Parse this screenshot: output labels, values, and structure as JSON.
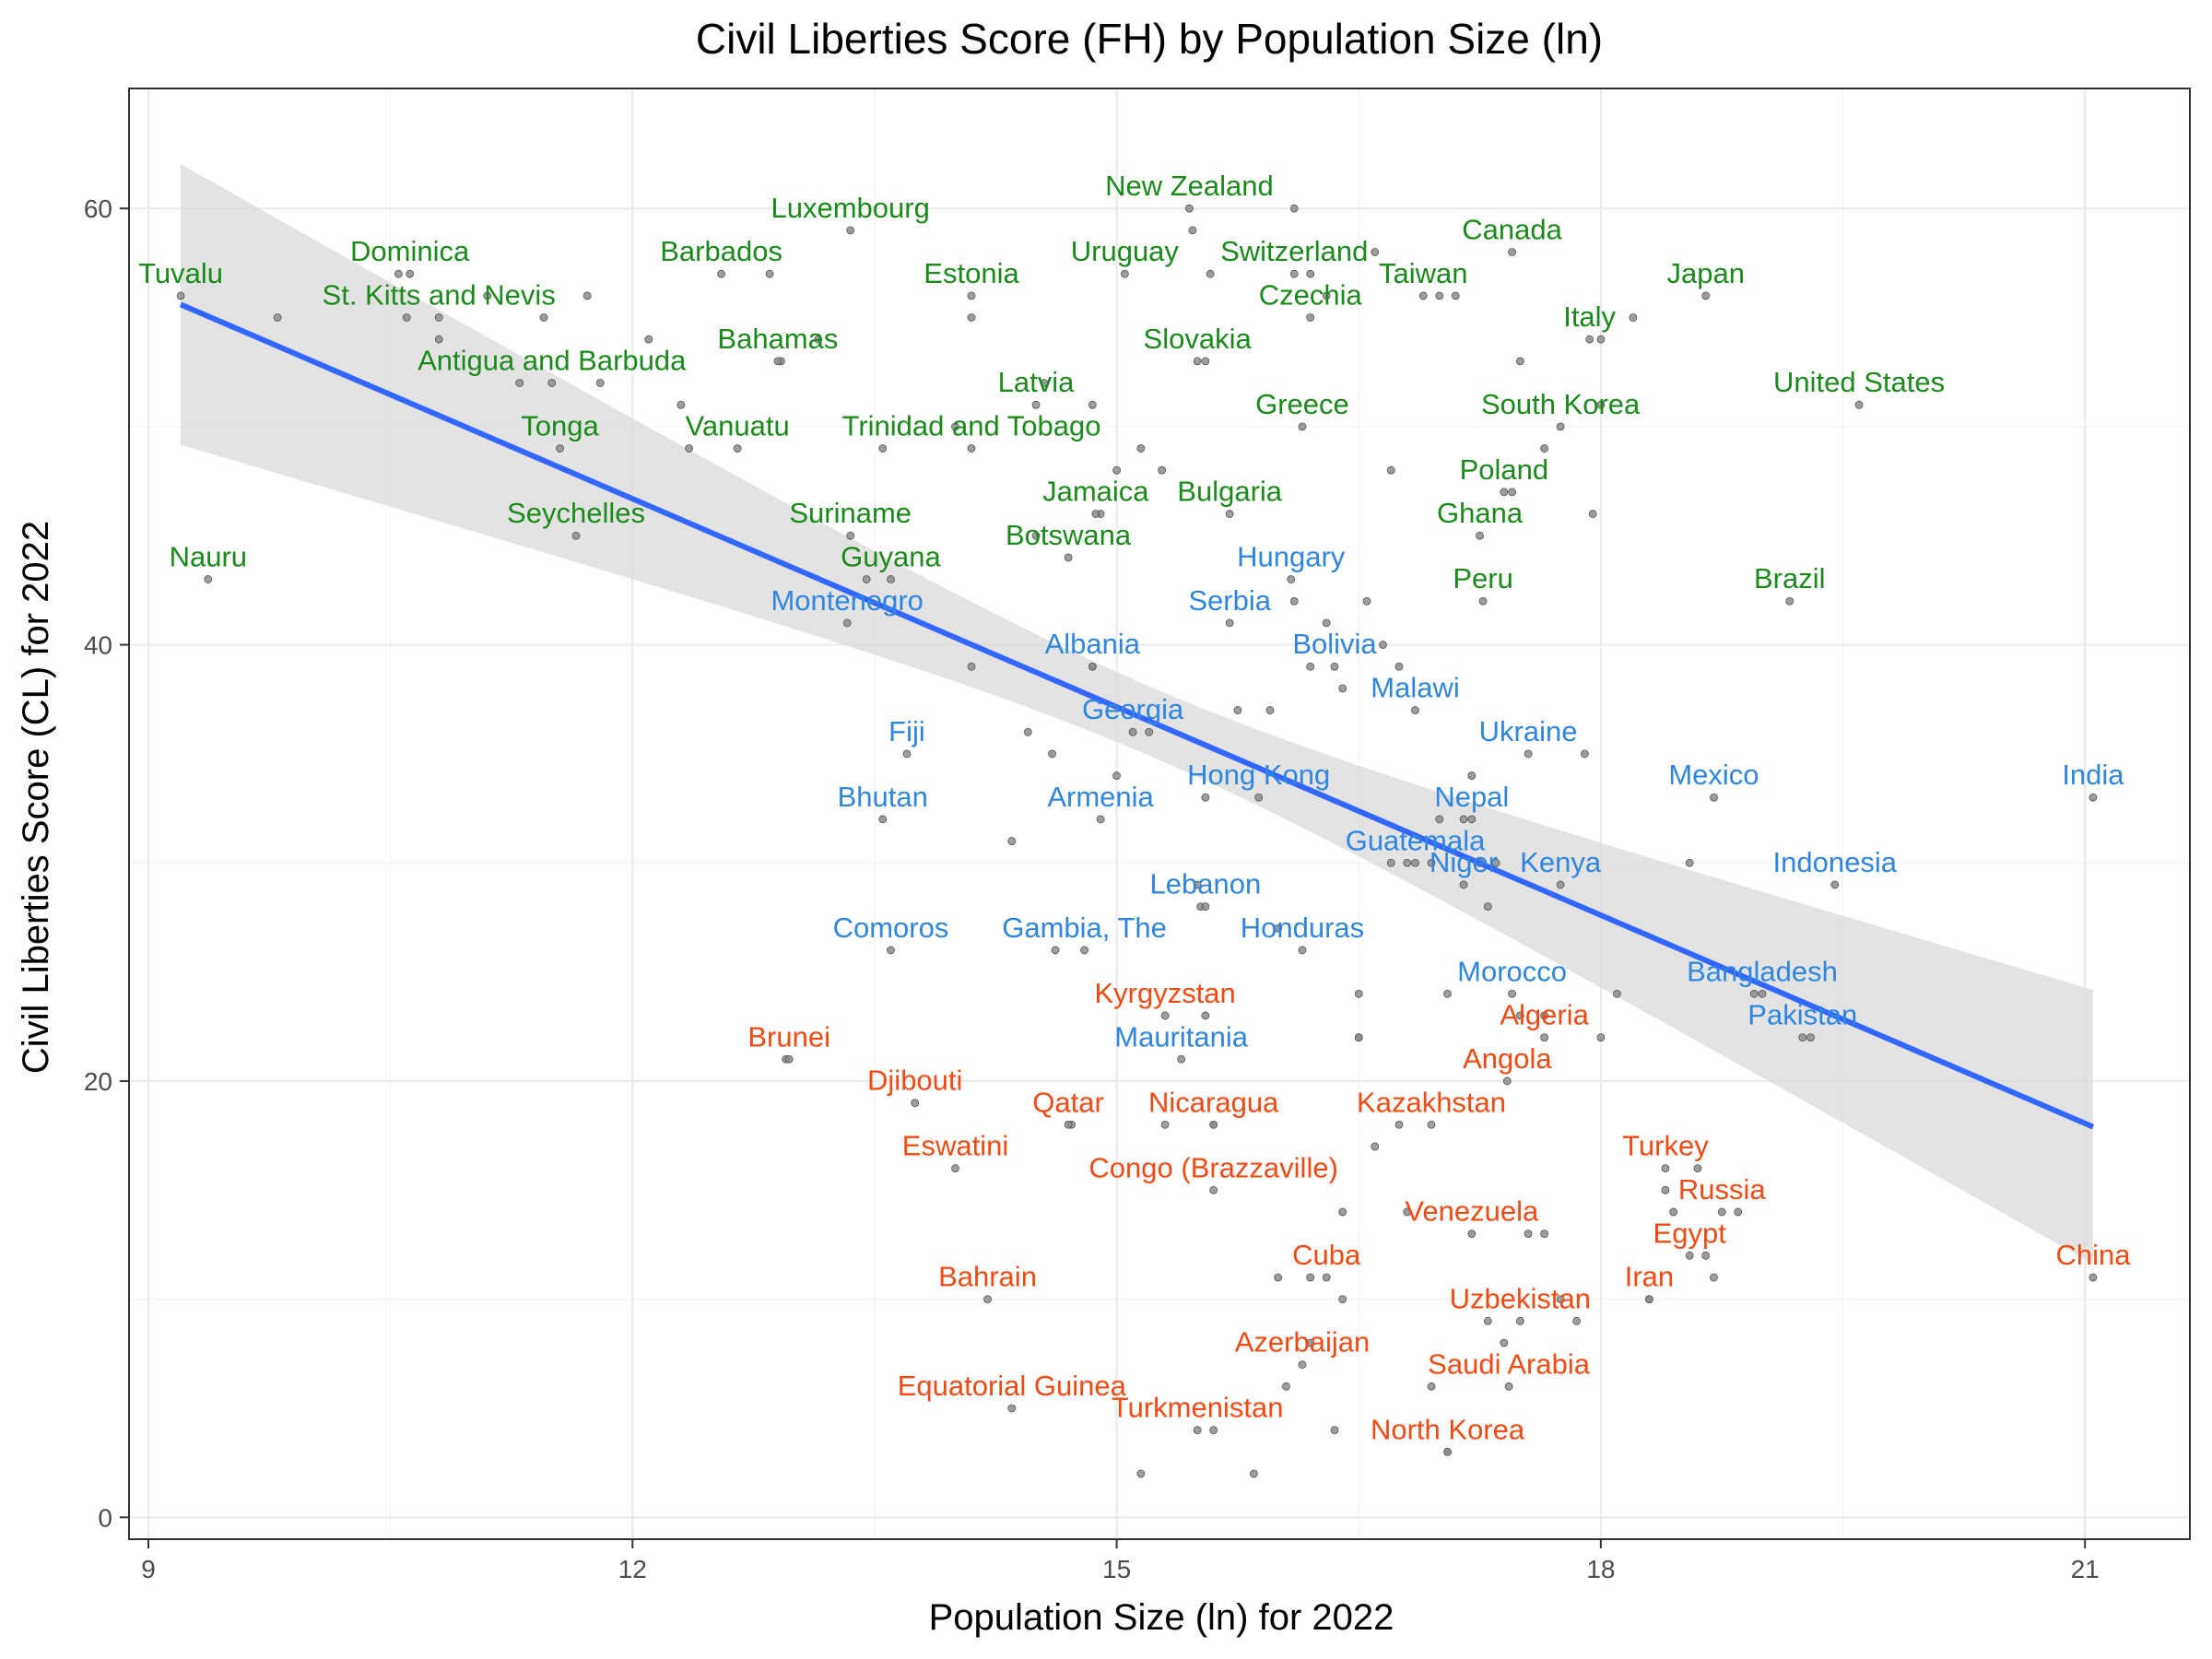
{
  "chart_data": {
    "type": "scatter",
    "title": "Civil Liberties Score (FH) by Population Size (ln)",
    "xlabel": "Population Size (ln) for 2022",
    "ylabel": "Civil Liberties Score (CL) for 2022",
    "xlim": [
      8.88,
      21.65
    ],
    "ylim": [
      -1,
      65.5
    ],
    "x_ticks": [
      9,
      12,
      15,
      18,
      21
    ],
    "y_ticks": [
      0,
      20,
      40,
      60
    ],
    "grid": true,
    "colors": {
      "high": "#1a8a1a",
      "mid": "#2f86e0",
      "low": "#f24a12",
      "point": "#8c8c8c",
      "trend": "#3366ff",
      "ribbon": "#d9d9d9"
    },
    "trend": {
      "x": [
        9.2,
        21.05
      ],
      "y": [
        55.6,
        17.9
      ],
      "ci_lower": [
        48.7,
        12.2
      ],
      "ci_upper": [
        62.5,
        23.7
      ],
      "ci_mid": [
        15.2,
        34.6,
        38.1
      ]
    },
    "labeled_points": [
      {
        "label": "Tuvalu",
        "x": 9.2,
        "y": 56,
        "group": "high"
      },
      {
        "label": "Nauru",
        "x": 9.37,
        "y": 43,
        "group": "high"
      },
      {
        "label": "St. Kitts and Nevis",
        "x": 10.8,
        "y": 55,
        "group": "high"
      },
      {
        "label": "Dominica",
        "x": 10.62,
        "y": 57,
        "group": "high"
      },
      {
        "label": "Antigua and Barbuda",
        "x": 11.5,
        "y": 52,
        "group": "high"
      },
      {
        "label": "Tonga",
        "x": 11.55,
        "y": 49,
        "group": "high"
      },
      {
        "label": "Seychelles",
        "x": 11.65,
        "y": 45,
        "group": "high"
      },
      {
        "label": "Barbados",
        "x": 12.55,
        "y": 57,
        "group": "high"
      },
      {
        "label": "Vanuatu",
        "x": 12.65,
        "y": 49,
        "group": "high"
      },
      {
        "label": "Bahamas",
        "x": 12.9,
        "y": 53,
        "group": "high"
      },
      {
        "label": "Luxembourg",
        "x": 13.35,
        "y": 59,
        "group": "high"
      },
      {
        "label": "Suriname",
        "x": 13.35,
        "y": 45,
        "group": "high"
      },
      {
        "label": "Guyana",
        "x": 13.6,
        "y": 43,
        "group": "high"
      },
      {
        "label": "Estonia",
        "x": 14.1,
        "y": 56,
        "group": "high"
      },
      {
        "label": "Trinidad and Tobago",
        "x": 14.1,
        "y": 49,
        "group": "high"
      },
      {
        "label": "Latvia",
        "x": 14.5,
        "y": 51,
        "group": "high"
      },
      {
        "label": "Botswana",
        "x": 14.7,
        "y": 44,
        "group": "high"
      },
      {
        "label": "Jamaica",
        "x": 14.87,
        "y": 46,
        "group": "high"
      },
      {
        "label": "Uruguay",
        "x": 15.05,
        "y": 57,
        "group": "high"
      },
      {
        "label": "New Zealand",
        "x": 15.45,
        "y": 60,
        "group": "high"
      },
      {
        "label": "Slovakia",
        "x": 15.5,
        "y": 53,
        "group": "high"
      },
      {
        "label": "Bulgaria",
        "x": 15.7,
        "y": 46,
        "group": "high"
      },
      {
        "label": "Switzerland",
        "x": 16.1,
        "y": 57,
        "group": "high"
      },
      {
        "label": "Czechia",
        "x": 16.2,
        "y": 55,
        "group": "high"
      },
      {
        "label": "Greece",
        "x": 16.15,
        "y": 50,
        "group": "high"
      },
      {
        "label": "Taiwan",
        "x": 16.9,
        "y": 56,
        "group": "high"
      },
      {
        "label": "Canada",
        "x": 17.45,
        "y": 58,
        "group": "high"
      },
      {
        "label": "Poland",
        "x": 17.4,
        "y": 47,
        "group": "high"
      },
      {
        "label": "Ghana",
        "x": 17.25,
        "y": 45,
        "group": "high"
      },
      {
        "label": "Peru",
        "x": 17.27,
        "y": 42,
        "group": "high"
      },
      {
        "label": "Italy",
        "x": 17.93,
        "y": 54,
        "group": "high"
      },
      {
        "label": "South Korea",
        "x": 17.75,
        "y": 50,
        "group": "high"
      },
      {
        "label": "Japan",
        "x": 18.65,
        "y": 56,
        "group": "high"
      },
      {
        "label": "United States",
        "x": 19.6,
        "y": 51,
        "group": "high"
      },
      {
        "label": "Brazil",
        "x": 19.17,
        "y": 42,
        "group": "high"
      },
      {
        "label": "Montenegro",
        "x": 13.33,
        "y": 41,
        "group": "mid"
      },
      {
        "label": "Fiji",
        "x": 13.7,
        "y": 35,
        "group": "mid"
      },
      {
        "label": "Bhutan",
        "x": 13.55,
        "y": 32,
        "group": "mid"
      },
      {
        "label": "Comoros",
        "x": 13.6,
        "y": 26,
        "group": "mid"
      },
      {
        "label": "Albania",
        "x": 14.85,
        "y": 39,
        "group": "mid"
      },
      {
        "label": "Georgia",
        "x": 15.1,
        "y": 36,
        "group": "mid"
      },
      {
        "label": "Armenia",
        "x": 14.9,
        "y": 32,
        "group": "mid"
      },
      {
        "label": "Gambia, The",
        "x": 14.8,
        "y": 26,
        "group": "mid"
      },
      {
        "label": "Hungary",
        "x": 16.08,
        "y": 43,
        "group": "mid"
      },
      {
        "label": "Serbia",
        "x": 15.7,
        "y": 41,
        "group": "mid"
      },
      {
        "label": "Bolivia",
        "x": 16.35,
        "y": 39,
        "group": "mid"
      },
      {
        "label": "Malawi",
        "x": 16.85,
        "y": 37,
        "group": "mid"
      },
      {
        "label": "Hong Kong",
        "x": 15.88,
        "y": 33,
        "group": "mid"
      },
      {
        "label": "Lebanon",
        "x": 15.55,
        "y": 28,
        "group": "mid"
      },
      {
        "label": "Honduras",
        "x": 16.15,
        "y": 26,
        "group": "mid"
      },
      {
        "label": "Mauritania",
        "x": 15.4,
        "y": 21,
        "group": "mid"
      },
      {
        "label": "Guatemala",
        "x": 16.85,
        "y": 30,
        "group": "mid"
      },
      {
        "label": "Nepal",
        "x": 17.2,
        "y": 32,
        "group": "mid"
      },
      {
        "label": "Niger",
        "x": 17.15,
        "y": 29,
        "group": "mid"
      },
      {
        "label": "Ukraine",
        "x": 17.55,
        "y": 35,
        "group": "mid"
      },
      {
        "label": "Kenya",
        "x": 17.75,
        "y": 29,
        "group": "mid"
      },
      {
        "label": "Morocco",
        "x": 17.45,
        "y": 24,
        "group": "mid"
      },
      {
        "label": "Mexico",
        "x": 18.7,
        "y": 33,
        "group": "mid"
      },
      {
        "label": "Indonesia",
        "x": 19.45,
        "y": 29,
        "group": "mid"
      },
      {
        "label": "Bangladesh",
        "x": 19.0,
        "y": 24,
        "group": "mid"
      },
      {
        "label": "Pakistan",
        "x": 19.25,
        "y": 22,
        "group": "mid"
      },
      {
        "label": "India",
        "x": 21.05,
        "y": 33,
        "group": "mid"
      },
      {
        "label": "Brunei",
        "x": 12.97,
        "y": 21,
        "group": "low"
      },
      {
        "label": "Djibouti",
        "x": 13.75,
        "y": 19,
        "group": "low"
      },
      {
        "label": "Eswatini",
        "x": 14.0,
        "y": 16,
        "group": "low"
      },
      {
        "label": "Bahrain",
        "x": 14.2,
        "y": 10,
        "group": "low"
      },
      {
        "label": "Equatorial Guinea",
        "x": 14.35,
        "y": 5,
        "group": "low"
      },
      {
        "label": "Qatar",
        "x": 14.7,
        "y": 18,
        "group": "low"
      },
      {
        "label": "Kyrgyzstan",
        "x": 15.3,
        "y": 23,
        "group": "low"
      },
      {
        "label": "Nicaragua",
        "x": 15.6,
        "y": 18,
        "group": "low"
      },
      {
        "label": "Congo (Brazzaville)",
        "x": 15.6,
        "y": 15,
        "group": "low"
      },
      {
        "label": "Kazakhstan",
        "x": 16.95,
        "y": 18,
        "group": "low"
      },
      {
        "label": "Angola",
        "x": 17.42,
        "y": 20,
        "group": "low"
      },
      {
        "label": "Algeria",
        "x": 17.65,
        "y": 22,
        "group": "low"
      },
      {
        "label": "Cuba",
        "x": 16.3,
        "y": 11,
        "group": "low"
      },
      {
        "label": "Azerbaijan",
        "x": 16.15,
        "y": 7,
        "group": "low"
      },
      {
        "label": "Turkmenistan",
        "x": 15.5,
        "y": 4,
        "group": "low"
      },
      {
        "label": "Venezuela",
        "x": 17.2,
        "y": 13,
        "group": "low"
      },
      {
        "label": "Uzbekistan",
        "x": 17.5,
        "y": 9,
        "group": "low"
      },
      {
        "label": "Saudi Arabia",
        "x": 17.43,
        "y": 6,
        "group": "low"
      },
      {
        "label": "North Korea",
        "x": 17.05,
        "y": 3,
        "group": "low"
      },
      {
        "label": "Turkey",
        "x": 18.4,
        "y": 16,
        "group": "low"
      },
      {
        "label": "Russia",
        "x": 18.75,
        "y": 14,
        "group": "low"
      },
      {
        "label": "Egypt",
        "x": 18.55,
        "y": 12,
        "group": "low"
      },
      {
        "label": "Iran",
        "x": 18.3,
        "y": 10,
        "group": "low"
      },
      {
        "label": "China",
        "x": 21.05,
        "y": 11,
        "group": "low"
      }
    ],
    "unlabeled_points": [
      {
        "x": 9.8,
        "y": 55
      },
      {
        "x": 10.55,
        "y": 57
      },
      {
        "x": 10.6,
        "y": 55
      },
      {
        "x": 10.8,
        "y": 54
      },
      {
        "x": 11.1,
        "y": 56
      },
      {
        "x": 11.3,
        "y": 52
      },
      {
        "x": 11.45,
        "y": 55
      },
      {
        "x": 11.72,
        "y": 56
      },
      {
        "x": 11.8,
        "y": 52
      },
      {
        "x": 12.1,
        "y": 54
      },
      {
        "x": 12.3,
        "y": 51
      },
      {
        "x": 12.35,
        "y": 49
      },
      {
        "x": 12.85,
        "y": 57
      },
      {
        "x": 12.92,
        "y": 53
      },
      {
        "x": 13.15,
        "y": 54
      },
      {
        "x": 13.45,
        "y": 43
      },
      {
        "x": 13.55,
        "y": 49
      },
      {
        "x": 14.0,
        "y": 50
      },
      {
        "x": 14.1,
        "y": 55
      },
      {
        "x": 14.1,
        "y": 39
      },
      {
        "x": 14.5,
        "y": 45
      },
      {
        "x": 14.55,
        "y": 52
      },
      {
        "x": 14.85,
        "y": 51
      },
      {
        "x": 14.9,
        "y": 46
      },
      {
        "x": 15.0,
        "y": 48
      },
      {
        "x": 15.15,
        "y": 49
      },
      {
        "x": 15.28,
        "y": 48
      },
      {
        "x": 15.55,
        "y": 53
      },
      {
        "x": 15.58,
        "y": 57
      },
      {
        "x": 15.47,
        "y": 59
      },
      {
        "x": 16.1,
        "y": 60
      },
      {
        "x": 16.2,
        "y": 57
      },
      {
        "x": 16.3,
        "y": 56
      },
      {
        "x": 16.6,
        "y": 58
      },
      {
        "x": 16.7,
        "y": 48
      },
      {
        "x": 17.0,
        "y": 56
      },
      {
        "x": 17.1,
        "y": 56
      },
      {
        "x": 17.45,
        "y": 47
      },
      {
        "x": 17.5,
        "y": 53
      },
      {
        "x": 17.65,
        "y": 49
      },
      {
        "x": 17.95,
        "y": 46
      },
      {
        "x": 18.0,
        "y": 54
      },
      {
        "x": 18.2,
        "y": 55
      },
      {
        "x": 18.0,
        "y": 51
      },
      {
        "x": 14.35,
        "y": 31
      },
      {
        "x": 14.45,
        "y": 36
      },
      {
        "x": 14.6,
        "y": 35
      },
      {
        "x": 14.85,
        "y": 39
      },
      {
        "x": 15.0,
        "y": 34
      },
      {
        "x": 15.2,
        "y": 36
      },
      {
        "x": 15.55,
        "y": 33
      },
      {
        "x": 15.75,
        "y": 37
      },
      {
        "x": 15.95,
        "y": 37
      },
      {
        "x": 16.1,
        "y": 42
      },
      {
        "x": 16.2,
        "y": 39
      },
      {
        "x": 16.3,
        "y": 41
      },
      {
        "x": 16.4,
        "y": 38
      },
      {
        "x": 16.55,
        "y": 42
      },
      {
        "x": 16.65,
        "y": 40
      },
      {
        "x": 16.75,
        "y": 39
      },
      {
        "x": 15.5,
        "y": 29
      },
      {
        "x": 15.52,
        "y": 28
      },
      {
        "x": 16.0,
        "y": 27
      },
      {
        "x": 16.5,
        "y": 24
      },
      {
        "x": 16.5,
        "y": 22
      },
      {
        "x": 16.7,
        "y": 30
      },
      {
        "x": 16.8,
        "y": 30
      },
      {
        "x": 16.95,
        "y": 30
      },
      {
        "x": 17.0,
        "y": 32
      },
      {
        "x": 17.05,
        "y": 24
      },
      {
        "x": 17.15,
        "y": 32
      },
      {
        "x": 17.2,
        "y": 34
      },
      {
        "x": 17.25,
        "y": 30
      },
      {
        "x": 17.3,
        "y": 28
      },
      {
        "x": 17.35,
        "y": 30
      },
      {
        "x": 17.5,
        "y": 23
      },
      {
        "x": 17.65,
        "y": 23
      },
      {
        "x": 17.9,
        "y": 35
      },
      {
        "x": 18.0,
        "y": 22
      },
      {
        "x": 18.1,
        "y": 24
      },
      {
        "x": 18.55,
        "y": 30
      },
      {
        "x": 18.95,
        "y": 24
      },
      {
        "x": 19.3,
        "y": 22
      },
      {
        "x": 12.95,
        "y": 21
      },
      {
        "x": 14.62,
        "y": 26
      },
      {
        "x": 15.3,
        "y": 18
      },
      {
        "x": 15.55,
        "y": 23
      },
      {
        "x": 15.6,
        "y": 18
      },
      {
        "x": 14.72,
        "y": 18
      },
      {
        "x": 16.0,
        "y": 11
      },
      {
        "x": 16.2,
        "y": 11
      },
      {
        "x": 16.4,
        "y": 14
      },
      {
        "x": 16.4,
        "y": 10
      },
      {
        "x": 16.5,
        "y": 22
      },
      {
        "x": 16.6,
        "y": 17
      },
      {
        "x": 16.75,
        "y": 18
      },
      {
        "x": 16.8,
        "y": 14
      },
      {
        "x": 16.95,
        "y": 6
      },
      {
        "x": 17.05,
        "y": 3
      },
      {
        "x": 17.3,
        "y": 9
      },
      {
        "x": 17.4,
        "y": 8
      },
      {
        "x": 17.55,
        "y": 13
      },
      {
        "x": 17.65,
        "y": 13
      },
      {
        "x": 17.75,
        "y": 10
      },
      {
        "x": 17.85,
        "y": 9
      },
      {
        "x": 16.05,
        "y": 6
      },
      {
        "x": 16.2,
        "y": 8
      },
      {
        "x": 16.35,
        "y": 4
      },
      {
        "x": 15.15,
        "y": 2
      },
      {
        "x": 15.6,
        "y": 4
      },
      {
        "x": 15.85,
        "y": 2
      },
      {
        "x": 18.4,
        "y": 15
      },
      {
        "x": 18.45,
        "y": 14
      },
      {
        "x": 18.6,
        "y": 16
      },
      {
        "x": 18.65,
        "y": 12
      },
      {
        "x": 18.7,
        "y": 11
      },
      {
        "x": 18.85,
        "y": 14
      },
      {
        "x": 18.3,
        "y": 10
      }
    ]
  }
}
